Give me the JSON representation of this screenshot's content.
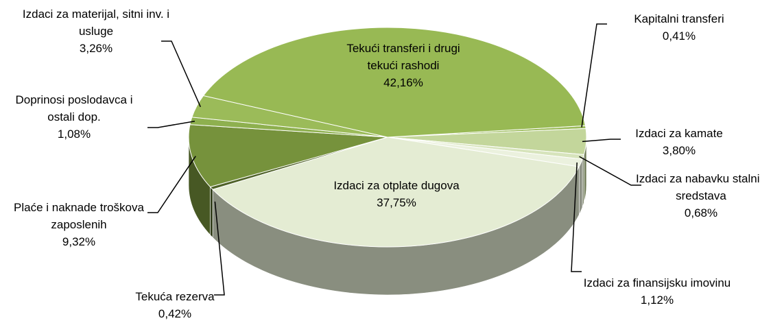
{
  "chart_data": {
    "type": "pie3d",
    "categories": [
      "Kapitalni transferi",
      "Izdaci za kamate",
      "Izdaci za nabavku stalnih sredstava",
      "Izdaci za finansijsku imovinu",
      "Izdaci za otplate dugova",
      "Tekuća rezerva",
      "Plaće i naknade troškova zaposlenih",
      "Doprinosi poslodavca i ostali dop.",
      "Izdaci za materijal, sitni inv. i usluge",
      "Tekući transferi i drugi tekući rashodi"
    ],
    "values": [
      0.41,
      3.8,
      0.68,
      1.12,
      37.75,
      0.42,
      9.32,
      1.08,
      3.26,
      42.16
    ],
    "value_labels": [
      "0,41%",
      "3,80%",
      "0,68%",
      "1,12%",
      "37,75%",
      "0,42%",
      "9,32%",
      "1,08%",
      "3,26%",
      "42,16%"
    ],
    "colors": [
      "#9bbb59",
      "#c3d69b",
      "#d7e4bc",
      "#ebf1de",
      "#e4ecd3",
      "#4f6228",
      "#76923c",
      "#8eb04f",
      "#9bbb59",
      "#98b954"
    ]
  }
}
